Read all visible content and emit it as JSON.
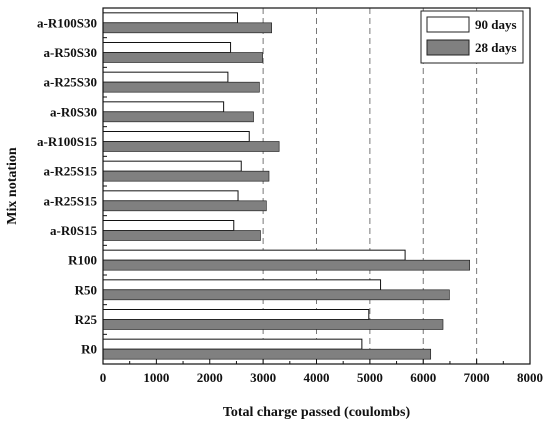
{
  "chart_data": {
    "type": "bar",
    "orientation": "horizontal",
    "xlabel": "Total charge passed (coulombs)",
    "ylabel": "Mix notation",
    "xlim": [
      0,
      8000
    ],
    "xticks": [
      0,
      1000,
      2000,
      3000,
      4000,
      5000,
      6000,
      7000,
      8000
    ],
    "grid": "vertical dashed at 3000, 4000, 5000, 6000, 7000",
    "legend_position": "top-right",
    "categories": [
      "a-R100S30",
      "a-R50S30",
      "a-R25S30",
      "a-R0S30",
      "a-R100S15",
      "a-R25S15",
      "a-R25S15",
      "a-R0S15",
      "R100",
      "R50",
      "R25",
      "R0"
    ],
    "series": [
      {
        "name": "90 days",
        "color": "#ffffff",
        "values": [
          2520,
          2390,
          2340,
          2260,
          2740,
          2590,
          2530,
          2450,
          5660,
          5200,
          4980,
          4850
        ]
      },
      {
        "name": "28 days",
        "color": "#808080",
        "values": [
          3160,
          2990,
          2930,
          2820,
          3300,
          3110,
          3060,
          2950,
          6870,
          6490,
          6370,
          6140
        ]
      }
    ]
  }
}
